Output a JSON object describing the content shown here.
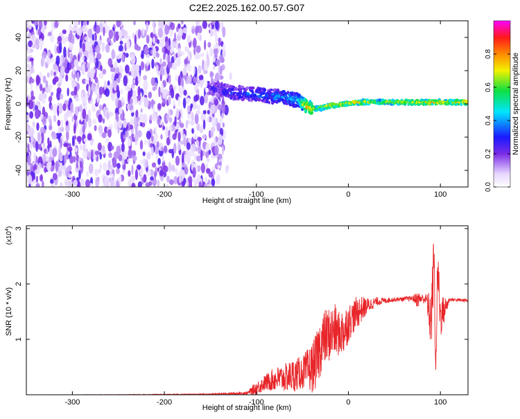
{
  "title": "C2E2.2025.162.00.57.G07",
  "colors": {
    "snr_line": "#e8262a",
    "spectrogram_noise": "#7a2be6",
    "axis": "#000000"
  },
  "chart_data": [
    {
      "type": "heatmap",
      "name": "spectrogram",
      "xlabel": "Height of straight line (km)",
      "ylabel": "Frequency (Hz)",
      "xlim": [
        -350,
        130
      ],
      "ylim": [
        -50,
        50
      ],
      "x_ticks": [
        -300,
        -200,
        -100,
        0,
        100
      ],
      "x_tick_labels": [
        "-300",
        "-200",
        "-100",
        "0",
        "100"
      ],
      "y_ticks": [
        -40,
        -20,
        0,
        20,
        40
      ],
      "y_tick_labels": [
        "-40",
        "-20",
        "0",
        "20",
        "40"
      ],
      "colorbar": {
        "label": "Normalized spectral amplitude",
        "range": [
          0,
          1
        ],
        "ticks": [
          0.0,
          0.2,
          0.4,
          0.6,
          0.8
        ],
        "tick_labels": [
          "0.0",
          "0.2",
          "0.4",
          "0.6",
          "0.8"
        ],
        "colormap": "rainbow (white-violet-blue-cyan-green-yellow-red-magenta)"
      },
      "noise_region_x": [
        -350,
        -135
      ],
      "signal_trace": {
        "x": [
          -150,
          -130,
          -110,
          -90,
          -70,
          -55,
          -45,
          -35,
          -20,
          -5,
          10,
          30,
          60,
          90,
          110,
          130
        ],
        "freq_hz": [
          10,
          7,
          6,
          5,
          4,
          2,
          -2,
          -3,
          -1,
          0,
          1,
          1,
          1,
          1,
          1,
          1
        ],
        "amplitude": [
          0.3,
          0.35,
          0.4,
          0.4,
          0.45,
          0.5,
          0.85,
          0.7,
          0.8,
          0.75,
          0.8,
          0.7,
          0.75,
          0.85,
          0.8,
          0.85
        ]
      }
    },
    {
      "type": "line",
      "name": "snr",
      "xlabel": "Height of straight line (km)",
      "ylabel": "SNR (10 * v/v)",
      "y_multiplier_label": "(x10",
      "y_multiplier_exp": "4",
      "xlim": [
        -350,
        130
      ],
      "ylim": [
        0,
        3.05
      ],
      "x_ticks": [
        -300,
        -200,
        -100,
        0,
        100
      ],
      "x_tick_labels": [
        "-300",
        "-200",
        "-100",
        "0",
        "100"
      ],
      "y_ticks": [
        1,
        2,
        3
      ],
      "y_tick_labels": [
        "1",
        "2",
        "3"
      ],
      "series": [
        {
          "x": [
            -350,
            -250,
            -150,
            -110,
            -100,
            -90,
            -80,
            -70,
            -60,
            -50,
            -40,
            -35,
            -30,
            -25,
            -20,
            -15,
            -10,
            -5,
            0,
            5,
            10,
            20,
            30,
            40,
            50,
            60,
            70,
            75,
            80,
            85,
            90,
            93,
            95,
            97,
            100,
            110,
            130
          ],
          "y": [
            0.0,
            0.0,
            0.01,
            0.03,
            0.12,
            0.22,
            0.28,
            0.3,
            0.35,
            0.4,
            0.48,
            0.6,
            0.9,
            1.05,
            1.1,
            1.15,
            1.1,
            1.15,
            1.3,
            1.4,
            1.5,
            1.6,
            1.68,
            1.7,
            1.72,
            1.73,
            1.74,
            1.72,
            1.74,
            1.72,
            1.3,
            2.5,
            0.4,
            2.3,
            1.4,
            1.72,
            1.7
          ],
          "band": [
            0.0,
            0.005,
            0.01,
            0.03,
            0.12,
            0.15,
            0.22,
            0.25,
            0.3,
            0.3,
            0.45,
            0.5,
            0.55,
            0.5,
            0.5,
            0.5,
            0.4,
            0.45,
            0.35,
            0.3,
            0.3,
            0.15,
            0.08,
            0.05,
            0.04,
            0.04,
            0.05,
            0.15,
            0.08,
            0.1,
            0.6,
            0.5,
            0.2,
            0.5,
            0.4,
            0.03,
            0.03
          ]
        }
      ]
    }
  ]
}
